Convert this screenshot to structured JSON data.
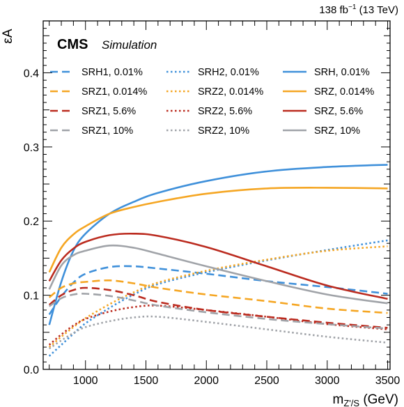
{
  "chart_data": {
    "type": "line",
    "title": "",
    "top_right_label": "138 fb-1 (13 TeV)",
    "lumi_value": "138 fb",
    "lumi_exponent": "−1",
    "lumi_energy": "(13 TeV)",
    "experiment_label": "CMS",
    "experiment_sublabel": "Simulation",
    "xlabel": "m",
    "xlabel_subscript": "Z'/S",
    "xlabel_unit": "(GeV)",
    "ylabel": "εA",
    "xlim": [
      650,
      3520
    ],
    "ylim": [
      0.0,
      0.47
    ],
    "xticks": [
      1000,
      1500,
      2000,
      2500,
      3000,
      3500
    ],
    "yticks": [
      0.0,
      0.1,
      0.2,
      0.3,
      0.4
    ],
    "ytick_labels": [
      "0.0",
      "0.1",
      "0.2",
      "0.3",
      "0.4"
    ],
    "grid": false,
    "legend_position": "top-left",
    "legend_columns": 3,
    "series": [
      {
        "name": "SRH1, 0.01%",
        "color": "#3f90da",
        "style": "dashed",
        "x": [
          700,
          800,
          900,
          1000,
          1200,
          1400,
          1600,
          2000,
          2500,
          3000,
          3500
        ],
        "y": [
          0.074,
          0.098,
          0.117,
          0.129,
          0.138,
          0.139,
          0.136,
          0.129,
          0.119,
          0.111,
          0.102
        ]
      },
      {
        "name": "SRH2, 0.01%",
        "color": "#3f90da",
        "style": "dotted",
        "x": [
          700,
          800,
          900,
          1000,
          1200,
          1400,
          1600,
          2000,
          2500,
          3000,
          3500
        ],
        "y": [
          0.018,
          0.033,
          0.048,
          0.062,
          0.083,
          0.101,
          0.115,
          0.131,
          0.147,
          0.161,
          0.174
        ]
      },
      {
        "name": "SRH, 0.01%",
        "color": "#3f90da",
        "style": "solid",
        "x": [
          700,
          800,
          900,
          1000,
          1200,
          1400,
          1600,
          2000,
          2500,
          3000,
          3500
        ],
        "y": [
          0.06,
          0.118,
          0.16,
          0.183,
          0.21,
          0.226,
          0.238,
          0.254,
          0.267,
          0.273,
          0.276
        ]
      },
      {
        "name": "SRZ1, 0.014%",
        "color": "#f5a623",
        "style": "dashed",
        "x": [
          700,
          800,
          900,
          1000,
          1200,
          1400,
          1600,
          2000,
          2500,
          3000,
          3500
        ],
        "y": [
          0.097,
          0.11,
          0.116,
          0.118,
          0.12,
          0.116,
          0.11,
          0.101,
          0.092,
          0.082,
          0.076
        ]
      },
      {
        "name": "SRZ2, 0.014%",
        "color": "#f5a623",
        "style": "dotted",
        "x": [
          700,
          800,
          900,
          1000,
          1200,
          1400,
          1600,
          2000,
          2500,
          3000,
          3500
        ],
        "y": [
          0.03,
          0.044,
          0.057,
          0.069,
          0.088,
          0.104,
          0.117,
          0.133,
          0.148,
          0.16,
          0.166
        ]
      },
      {
        "name": "SRZ, 0.014%",
        "color": "#f5a623",
        "style": "solid",
        "x": [
          700,
          800,
          900,
          1000,
          1200,
          1400,
          1600,
          2000,
          2500,
          3000,
          3500
        ],
        "y": [
          0.131,
          0.164,
          0.182,
          0.193,
          0.21,
          0.219,
          0.226,
          0.237,
          0.244,
          0.245,
          0.244
        ]
      },
      {
        "name": "SRZ1, 5.6%",
        "color": "#bb2b1f",
        "style": "dashed",
        "x": [
          700,
          800,
          900,
          1000,
          1200,
          1400,
          1600,
          2000,
          2500,
          3000,
          3500
        ],
        "y": [
          0.087,
          0.1,
          0.107,
          0.11,
          0.107,
          0.1,
          0.091,
          0.08,
          0.071,
          0.063,
          0.056
        ]
      },
      {
        "name": "SRZ2, 5.6%",
        "color": "#bb2b1f",
        "style": "dotted",
        "x": [
          700,
          800,
          900,
          1000,
          1200,
          1400,
          1600,
          2000,
          2500,
          3000,
          3500
        ],
        "y": [
          0.033,
          0.047,
          0.059,
          0.068,
          0.078,
          0.084,
          0.086,
          0.08,
          0.071,
          0.061,
          0.054
        ]
      },
      {
        "name": "SRZ, 5.6%",
        "color": "#bb2b1f",
        "style": "solid",
        "x": [
          700,
          800,
          900,
          1000,
          1200,
          1400,
          1600,
          2000,
          2500,
          3000,
          3500
        ],
        "y": [
          0.119,
          0.147,
          0.163,
          0.172,
          0.181,
          0.183,
          0.18,
          0.165,
          0.139,
          0.113,
          0.095
        ]
      },
      {
        "name": "SRZ1, 10%",
        "color": "#a0a3a8",
        "style": "dashed",
        "x": [
          700,
          800,
          900,
          1000,
          1200,
          1400,
          1600,
          2000,
          2500,
          3000,
          3500
        ],
        "y": [
          0.085,
          0.096,
          0.101,
          0.102,
          0.099,
          0.093,
          0.086,
          0.077,
          0.068,
          0.061,
          0.055
        ]
      },
      {
        "name": "SRZ2, 10%",
        "color": "#a0a3a8",
        "style": "dotted",
        "x": [
          700,
          800,
          900,
          1000,
          1200,
          1400,
          1600,
          2000,
          2500,
          3000,
          3500
        ],
        "y": [
          0.028,
          0.039,
          0.049,
          0.057,
          0.065,
          0.07,
          0.071,
          0.064,
          0.054,
          0.044,
          0.036
        ]
      },
      {
        "name": "SRZ, 10%",
        "color": "#a0a3a8",
        "style": "solid",
        "x": [
          700,
          800,
          900,
          1000,
          1200,
          1400,
          1600,
          2000,
          2500,
          3000,
          3500
        ],
        "y": [
          0.108,
          0.14,
          0.154,
          0.16,
          0.167,
          0.164,
          0.156,
          0.139,
          0.119,
          0.101,
          0.089
        ]
      }
    ]
  }
}
